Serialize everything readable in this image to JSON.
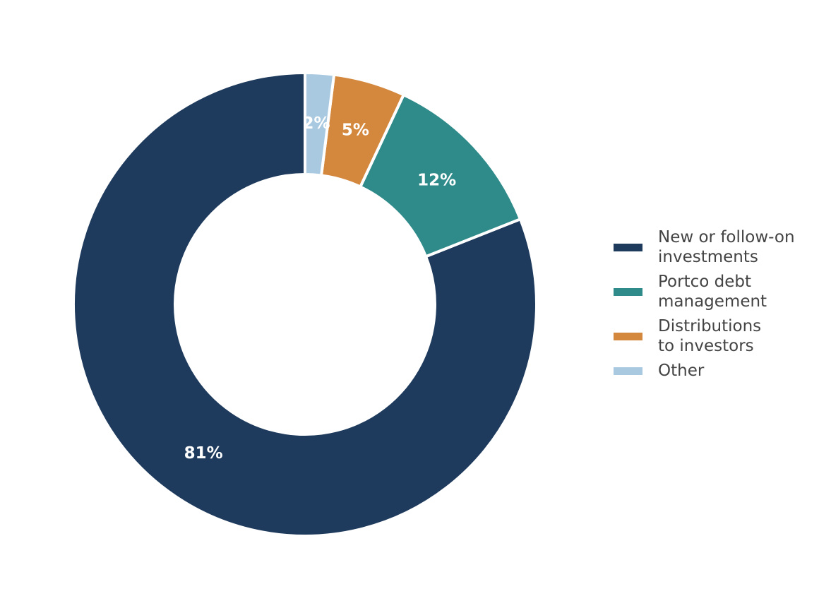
{
  "chart_data": {
    "type": "pie",
    "categories": [
      "New or follow-on\ninvestments",
      "Portco debt\nmanagement",
      "Distributions\nto investors",
      "Other"
    ],
    "values": [
      81,
      12,
      5,
      2
    ],
    "value_labels": [
      "81%",
      "12%",
      "5%",
      "2%"
    ],
    "colors": [
      "#1e3a5c",
      "#2e8b8a",
      "#d4883e",
      "#a9c9e1"
    ],
    "legend": "right"
  }
}
